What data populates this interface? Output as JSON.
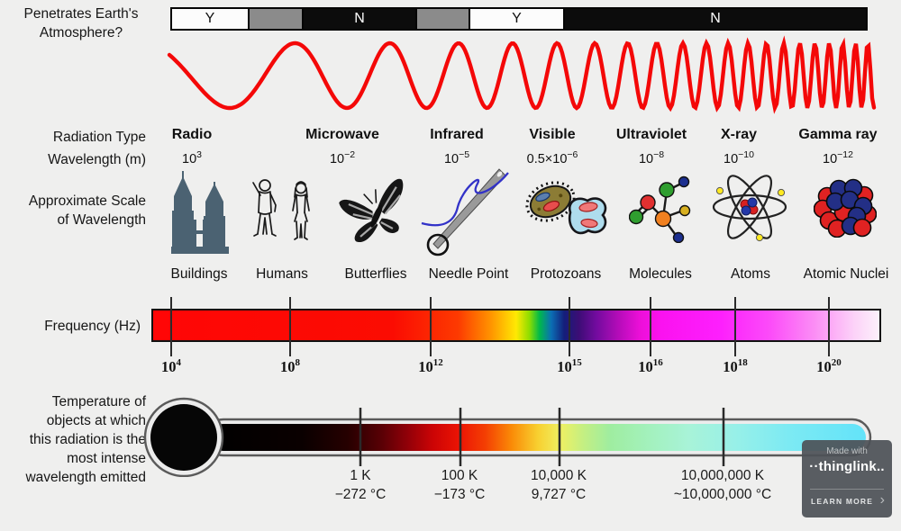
{
  "atmosphere": {
    "label": [
      "Penetrates Earth's",
      "Atmosphere?"
    ],
    "segments": [
      {
        "text": "Y",
        "bg": "white"
      },
      {
        "text": "",
        "bg": "gray"
      },
      {
        "text": "N",
        "bg": "black"
      },
      {
        "text": "",
        "bg": "gray"
      },
      {
        "text": "Y",
        "bg": "white"
      },
      {
        "text": "N",
        "bg": "black"
      }
    ]
  },
  "labels": {
    "radiation_type": "Radiation Type",
    "wavelength": "Wavelength (m)",
    "approx_scale": [
      "Approximate Scale",
      "of Wavelength"
    ],
    "frequency": "Frequency (Hz)",
    "temperature": [
      "Temperature of",
      "objects at which",
      "this radiation is the",
      "most intense",
      "wavelength emitted"
    ]
  },
  "types": [
    {
      "name": "Radio",
      "wl_base": "10",
      "wl_exp": "3"
    },
    {
      "name": "Microwave",
      "wl_base": "10",
      "wl_exp": "−2"
    },
    {
      "name": "Infrared",
      "wl_base": "10",
      "wl_exp": "−5"
    },
    {
      "name": "Visible",
      "wl_base": "0.5×10",
      "wl_exp": "−6"
    },
    {
      "name": "Ultraviolet",
      "wl_base": "10",
      "wl_exp": "−8"
    },
    {
      "name": "X-ray",
      "wl_base": "10",
      "wl_exp": "−10"
    },
    {
      "name": "Gamma ray",
      "wl_base": "10",
      "wl_exp": "−12"
    }
  ],
  "scales": [
    {
      "label": "Buildings"
    },
    {
      "label": "Humans"
    },
    {
      "label": "Butterflies"
    },
    {
      "label": "Needle Point"
    },
    {
      "label": "Protozoans"
    },
    {
      "label": "Molecules"
    },
    {
      "label": "Atoms"
    },
    {
      "label": "Atomic Nuclei"
    }
  ],
  "frequency_ticks": [
    {
      "base": "10",
      "exp": "4"
    },
    {
      "base": "10",
      "exp": "8"
    },
    {
      "base": "10",
      "exp": "12"
    },
    {
      "base": "10",
      "exp": "15"
    },
    {
      "base": "10",
      "exp": "16"
    },
    {
      "base": "10",
      "exp": "18"
    },
    {
      "base": "10",
      "exp": "20"
    }
  ],
  "temperature_ticks": [
    {
      "kelvin": "1 K",
      "celsius": "−272 °C"
    },
    {
      "kelvin": "100 K",
      "celsius": "−173 °C"
    },
    {
      "kelvin": "10,000 K",
      "celsius": "9,727 °C"
    },
    {
      "kelvin": "10,000,000 K",
      "celsius": "~10,000,000 °C"
    }
  ],
  "badge": {
    "made_with": "Made with",
    "brand": "··thinglink..",
    "cta": "LEARN MORE",
    "chevron": "›"
  },
  "colors": {
    "wave": "#f40808",
    "building": "#4b6272",
    "accent_magenta": "#fd1ffd",
    "thermo_cyan": "#63e3f9"
  }
}
